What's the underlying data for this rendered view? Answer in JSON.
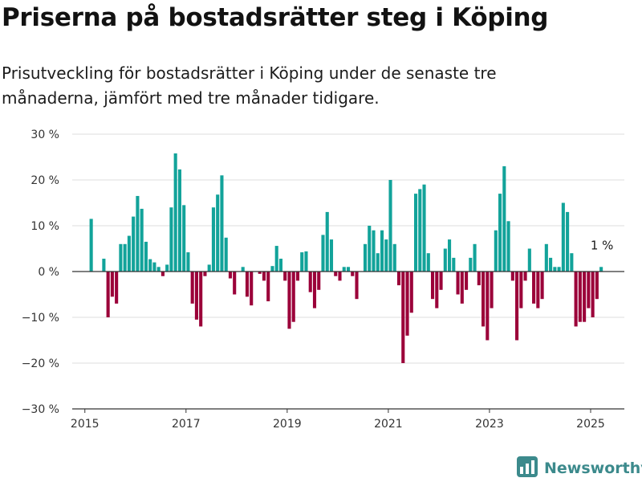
{
  "header": {
    "title": "Priserna på bostadsrätter steg i Köping",
    "subtitle": "Prisutveckling för bostadsrätter i Köping under de senaste tre månaderna, jämfört med tre månader tidigare."
  },
  "brand": {
    "name": "Newsworthy",
    "icon": "newsworthy-logo-icon"
  },
  "colors": {
    "positive": "#12a39a",
    "negative": "#9b0039",
    "grid": "#dddddd",
    "axis": "#333333"
  },
  "chart_data": {
    "type": "bar",
    "title": "",
    "xlabel": "",
    "ylabel": "",
    "unit": "%",
    "ylim": [
      -30,
      30
    ],
    "yticks": [
      30,
      20,
      10,
      0,
      -10,
      -20,
      -30
    ],
    "ytick_labels": [
      "30 %",
      "20 %",
      "10 %",
      "0 %",
      "−10 %",
      "−20 %",
      "−30 %"
    ],
    "xticks": [
      "2015",
      "2017",
      "2019",
      "2021",
      "2023",
      "2025"
    ],
    "xlim": [
      "2014-10",
      "2025-09"
    ],
    "grid": true,
    "series": [
      {
        "values": [
          {
            "x": "2015-02",
            "y": 11.5
          },
          {
            "x": "2015-05",
            "y": 2.8
          },
          {
            "x": "2015-06",
            "y": -10.0
          },
          {
            "x": "2015-07",
            "y": -5.5
          },
          {
            "x": "2015-08",
            "y": -7.0
          },
          {
            "x": "2015-09",
            "y": 6.0
          },
          {
            "x": "2015-10",
            "y": 6.0
          },
          {
            "x": "2015-11",
            "y": 7.8
          },
          {
            "x": "2015-12",
            "y": 12.0
          },
          {
            "x": "2016-01",
            "y": 16.5
          },
          {
            "x": "2016-02",
            "y": 13.7
          },
          {
            "x": "2016-03",
            "y": 6.5
          },
          {
            "x": "2016-04",
            "y": 2.7
          },
          {
            "x": "2016-05",
            "y": 2.0
          },
          {
            "x": "2016-06",
            "y": 1.0
          },
          {
            "x": "2016-07",
            "y": -1.0
          },
          {
            "x": "2016-08",
            "y": 1.5
          },
          {
            "x": "2016-09",
            "y": 14.0
          },
          {
            "x": "2016-10",
            "y": 25.8
          },
          {
            "x": "2016-11",
            "y": 22.3
          },
          {
            "x": "2016-12",
            "y": 14.5
          },
          {
            "x": "2017-01",
            "y": 4.2
          },
          {
            "x": "2017-02",
            "y": -7.0
          },
          {
            "x": "2017-03",
            "y": -10.5
          },
          {
            "x": "2017-04",
            "y": -12.0
          },
          {
            "x": "2017-05",
            "y": -1.0
          },
          {
            "x": "2017-06",
            "y": 1.5
          },
          {
            "x": "2017-07",
            "y": 14.0
          },
          {
            "x": "2017-08",
            "y": 16.8
          },
          {
            "x": "2017-09",
            "y": 21.0
          },
          {
            "x": "2017-10",
            "y": 7.4
          },
          {
            "x": "2017-11",
            "y": -1.5
          },
          {
            "x": "2017-12",
            "y": -5.0
          },
          {
            "x": "2018-02",
            "y": 1.0
          },
          {
            "x": "2018-03",
            "y": -5.5
          },
          {
            "x": "2018-04",
            "y": -7.4
          },
          {
            "x": "2018-06",
            "y": -0.5
          },
          {
            "x": "2018-07",
            "y": -2.0
          },
          {
            "x": "2018-08",
            "y": -6.5
          },
          {
            "x": "2018-09",
            "y": 1.2
          },
          {
            "x": "2018-10",
            "y": 5.6
          },
          {
            "x": "2018-11",
            "y": 2.8
          },
          {
            "x": "2018-12",
            "y": -2.0
          },
          {
            "x": "2019-01",
            "y": -12.5
          },
          {
            "x": "2019-02",
            "y": -11.0
          },
          {
            "x": "2019-03",
            "y": -2.0
          },
          {
            "x": "2019-04",
            "y": 4.2
          },
          {
            "x": "2019-05",
            "y": 4.4
          },
          {
            "x": "2019-06",
            "y": -4.5
          },
          {
            "x": "2019-07",
            "y": -8.0
          },
          {
            "x": "2019-08",
            "y": -4.0
          },
          {
            "x": "2019-09",
            "y": 8.0
          },
          {
            "x": "2019-10",
            "y": 13.0
          },
          {
            "x": "2019-11",
            "y": 7.0
          },
          {
            "x": "2019-12",
            "y": -1.0
          },
          {
            "x": "2020-01",
            "y": -2.0
          },
          {
            "x": "2020-02",
            "y": 1.0
          },
          {
            "x": "2020-03",
            "y": 1.0
          },
          {
            "x": "2020-04",
            "y": -1.0
          },
          {
            "x": "2020-05",
            "y": -6.0
          },
          {
            "x": "2020-07",
            "y": 6.0
          },
          {
            "x": "2020-08",
            "y": 10.0
          },
          {
            "x": "2020-09",
            "y": 9.0
          },
          {
            "x": "2020-10",
            "y": 4.0
          },
          {
            "x": "2020-11",
            "y": 9.0
          },
          {
            "x": "2020-12",
            "y": 7.0
          },
          {
            "x": "2021-01",
            "y": 20.0
          },
          {
            "x": "2021-02",
            "y": 6.0
          },
          {
            "x": "2021-03",
            "y": -3.0
          },
          {
            "x": "2021-04",
            "y": -20.0
          },
          {
            "x": "2021-05",
            "y": -14.0
          },
          {
            "x": "2021-06",
            "y": -9.0
          },
          {
            "x": "2021-07",
            "y": 17.0
          },
          {
            "x": "2021-08",
            "y": 18.0
          },
          {
            "x": "2021-09",
            "y": 19.0
          },
          {
            "x": "2021-10",
            "y": 4.0
          },
          {
            "x": "2021-11",
            "y": -6.0
          },
          {
            "x": "2021-12",
            "y": -8.0
          },
          {
            "x": "2022-01",
            "y": -4.0
          },
          {
            "x": "2022-02",
            "y": 5.0
          },
          {
            "x": "2022-03",
            "y": 7.0
          },
          {
            "x": "2022-04",
            "y": 3.0
          },
          {
            "x": "2022-05",
            "y": -5.0
          },
          {
            "x": "2022-06",
            "y": -7.0
          },
          {
            "x": "2022-07",
            "y": -4.0
          },
          {
            "x": "2022-08",
            "y": 3.0
          },
          {
            "x": "2022-09",
            "y": 6.0
          },
          {
            "x": "2022-10",
            "y": -3.0
          },
          {
            "x": "2022-11",
            "y": -12.0
          },
          {
            "x": "2022-12",
            "y": -15.0
          },
          {
            "x": "2023-01",
            "y": -8.0
          },
          {
            "x": "2023-02",
            "y": 9.0
          },
          {
            "x": "2023-03",
            "y": 17.0
          },
          {
            "x": "2023-04",
            "y": 23.0
          },
          {
            "x": "2023-05",
            "y": 11.0
          },
          {
            "x": "2023-06",
            "y": -2.0
          },
          {
            "x": "2023-07",
            "y": -15.0
          },
          {
            "x": "2023-08",
            "y": -8.0
          },
          {
            "x": "2023-09",
            "y": -2.0
          },
          {
            "x": "2023-10",
            "y": 5.0
          },
          {
            "x": "2023-11",
            "y": -7.0
          },
          {
            "x": "2023-12",
            "y": -8.0
          },
          {
            "x": "2024-01",
            "y": -6.0
          },
          {
            "x": "2024-02",
            "y": 6.0
          },
          {
            "x": "2024-03",
            "y": 3.0
          },
          {
            "x": "2024-04",
            "y": 1.0
          },
          {
            "x": "2024-05",
            "y": 1.0
          },
          {
            "x": "2024-06",
            "y": 15.0
          },
          {
            "x": "2024-07",
            "y": 13.0
          },
          {
            "x": "2024-08",
            "y": 4.0
          },
          {
            "x": "2024-09",
            "y": -12.0
          },
          {
            "x": "2024-10",
            "y": -11.0
          },
          {
            "x": "2024-11",
            "y": -11.0
          },
          {
            "x": "2024-12",
            "y": -8.0
          },
          {
            "x": "2025-01",
            "y": -10.0
          },
          {
            "x": "2025-02",
            "y": -6.0
          },
          {
            "x": "2025-03",
            "y": 1.0
          }
        ]
      }
    ],
    "annotations": [
      {
        "text": "1 %",
        "x": "2025-03",
        "y": 1.0
      }
    ]
  }
}
